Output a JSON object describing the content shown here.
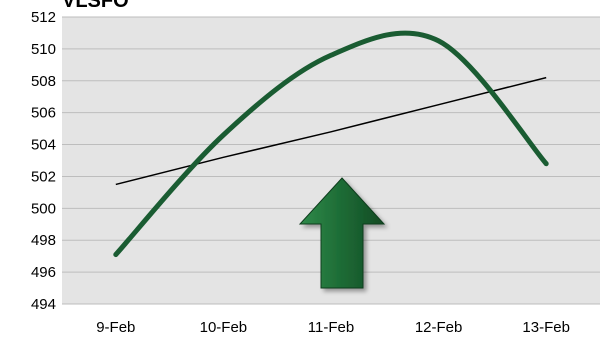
{
  "chart_data": {
    "type": "line",
    "title": "VLSFO",
    "categories": [
      "9-Feb",
      "10-Feb",
      "11-Feb",
      "12-Feb",
      "13-Feb"
    ],
    "ylim": [
      494,
      512
    ],
    "yticks": [
      494,
      496,
      498,
      500,
      502,
      504,
      506,
      508,
      510,
      512
    ],
    "grid": true,
    "series": [
      {
        "values": [
          497.1,
          504.6,
          509.6,
          510.5,
          502.8
        ],
        "color": "#1a5c32",
        "smooth": true
      },
      {
        "values": [
          501.5,
          503.2,
          504.8,
          506.5,
          508.2
        ],
        "color": "#000000",
        "trendline": true
      }
    ],
    "annotation": {
      "icon": "up-arrow-icon",
      "color": "#1d6b35"
    },
    "colors": {
      "plot_background": "#e4e4e4",
      "gridline": "#bdbdbd"
    }
  }
}
